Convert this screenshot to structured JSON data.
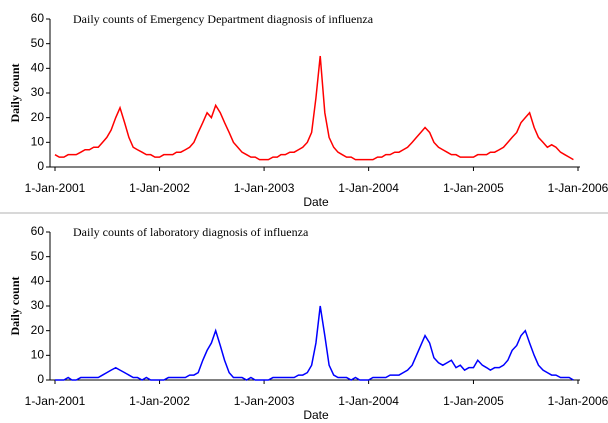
{
  "chart_data": [
    {
      "type": "line",
      "title": "Daily counts of Emergency Department diagnosis of influenza",
      "title_color": "#ff0000",
      "x_label": "Date",
      "y_label": "Daily count",
      "x": [
        "2001-01-01",
        "2001-01-16",
        "2001-02-01",
        "2001-02-16",
        "2001-03-01",
        "2001-03-16",
        "2001-04-01",
        "2001-04-16",
        "2001-05-01",
        "2001-05-16",
        "2001-06-01",
        "2001-06-16",
        "2001-07-01",
        "2001-07-16",
        "2001-08-01",
        "2001-08-16",
        "2001-09-01",
        "2001-09-16",
        "2001-10-01",
        "2001-10-16",
        "2001-11-01",
        "2001-11-16",
        "2001-12-01",
        "2001-12-16",
        "2002-01-01",
        "2002-01-16",
        "2002-02-01",
        "2002-02-16",
        "2002-03-01",
        "2002-03-16",
        "2002-04-01",
        "2002-04-16",
        "2002-05-01",
        "2002-05-16",
        "2002-06-01",
        "2002-06-16",
        "2002-07-01",
        "2002-07-16",
        "2002-08-01",
        "2002-08-16",
        "2002-09-01",
        "2002-09-16",
        "2002-10-01",
        "2002-10-16",
        "2002-11-01",
        "2002-11-16",
        "2002-12-01",
        "2002-12-16",
        "2003-01-01",
        "2003-01-16",
        "2003-02-01",
        "2003-02-16",
        "2003-03-01",
        "2003-03-16",
        "2003-04-01",
        "2003-04-16",
        "2003-05-01",
        "2003-05-16",
        "2003-06-01",
        "2003-06-16",
        "2003-07-01",
        "2003-07-16",
        "2003-08-01",
        "2003-08-16",
        "2003-09-01",
        "2003-09-16",
        "2003-10-01",
        "2003-10-16",
        "2003-11-01",
        "2003-11-16",
        "2003-12-01",
        "2003-12-16",
        "2004-01-01",
        "2004-01-16",
        "2004-02-01",
        "2004-02-16",
        "2004-03-01",
        "2004-03-16",
        "2004-04-01",
        "2004-04-16",
        "2004-05-01",
        "2004-05-16",
        "2004-06-01",
        "2004-06-16",
        "2004-07-01",
        "2004-07-16",
        "2004-08-01",
        "2004-08-16",
        "2004-09-01",
        "2004-09-16",
        "2004-10-01",
        "2004-10-16",
        "2004-11-01",
        "2004-11-16",
        "2004-12-01",
        "2004-12-16",
        "2005-01-01",
        "2005-01-16",
        "2005-02-01",
        "2005-02-16",
        "2005-03-01",
        "2005-03-16",
        "2005-04-01",
        "2005-04-16",
        "2005-05-01",
        "2005-05-16",
        "2005-06-01",
        "2005-06-16",
        "2005-07-01",
        "2005-07-16",
        "2005-08-01",
        "2005-08-16",
        "2005-09-01",
        "2005-09-16",
        "2005-10-01",
        "2005-10-16",
        "2005-11-01",
        "2005-11-16",
        "2005-12-01",
        "2005-12-16"
      ],
      "series": [
        {
          "name": "Emergency Department",
          "color": "#ff0000",
          "values": [
            5,
            4,
            4,
            5,
            5,
            5,
            6,
            7,
            7,
            8,
            8,
            10,
            12,
            15,
            20,
            24,
            18,
            12,
            8,
            7,
            6,
            5,
            5,
            4,
            4,
            5,
            5,
            5,
            6,
            6,
            7,
            8,
            10,
            14,
            18,
            22,
            20,
            25,
            22,
            18,
            14,
            10,
            8,
            6,
            5,
            4,
            4,
            3,
            3,
            3,
            4,
            4,
            5,
            5,
            6,
            6,
            7,
            8,
            10,
            14,
            28,
            45,
            22,
            12,
            8,
            6,
            5,
            4,
            4,
            3,
            3,
            3,
            3,
            3,
            4,
            4,
            5,
            5,
            6,
            6,
            7,
            8,
            10,
            12,
            14,
            16,
            14,
            10,
            8,
            7,
            6,
            5,
            5,
            4,
            4,
            4,
            4,
            5,
            5,
            5,
            6,
            6,
            7,
            8,
            10,
            12,
            14,
            18,
            20,
            22,
            16,
            12,
            10,
            8,
            9,
            8,
            6,
            5,
            4,
            3
          ]
        }
      ],
      "xlim": [
        "2001-01-01",
        "2006-01-01"
      ],
      "xticks": [
        {
          "value": "2001-01-01",
          "label": "1-Jan-2001"
        },
        {
          "value": "2002-01-01",
          "label": "1-Jan-2002"
        },
        {
          "value": "2003-01-01",
          "label": "1-Jan-2003"
        },
        {
          "value": "2004-01-01",
          "label": "1-Jan-2004"
        },
        {
          "value": "2005-01-01",
          "label": "1-Jan-2005"
        },
        {
          "value": "2006-01-01",
          "label": "1-Jan-2006"
        }
      ],
      "ylim": [
        0,
        60
      ],
      "yticks": [
        0,
        10,
        20,
        30,
        40,
        50,
        60
      ]
    },
    {
      "type": "line",
      "title": "Daily counts of laboratory diagnosis of influenza",
      "title_color": "#0000ff",
      "x_label": "Date",
      "y_label": "Daily count",
      "x": [
        "2001-01-01",
        "2001-01-16",
        "2001-02-01",
        "2001-02-16",
        "2001-03-01",
        "2001-03-16",
        "2001-04-01",
        "2001-04-16",
        "2001-05-01",
        "2001-05-16",
        "2001-06-01",
        "2001-06-16",
        "2001-07-01",
        "2001-07-16",
        "2001-08-01",
        "2001-08-16",
        "2001-09-01",
        "2001-09-16",
        "2001-10-01",
        "2001-10-16",
        "2001-11-01",
        "2001-11-16",
        "2001-12-01",
        "2001-12-16",
        "2002-01-01",
        "2002-01-16",
        "2002-02-01",
        "2002-02-16",
        "2002-03-01",
        "2002-03-16",
        "2002-04-01",
        "2002-04-16",
        "2002-05-01",
        "2002-05-16",
        "2002-06-01",
        "2002-06-16",
        "2002-07-01",
        "2002-07-16",
        "2002-08-01",
        "2002-08-16",
        "2002-09-01",
        "2002-09-16",
        "2002-10-01",
        "2002-10-16",
        "2002-11-01",
        "2002-11-16",
        "2002-12-01",
        "2002-12-16",
        "2003-01-01",
        "2003-01-16",
        "2003-02-01",
        "2003-02-16",
        "2003-03-01",
        "2003-03-16",
        "2003-04-01",
        "2003-04-16",
        "2003-05-01",
        "2003-05-16",
        "2003-06-01",
        "2003-06-16",
        "2003-07-01",
        "2003-07-16",
        "2003-08-01",
        "2003-08-16",
        "2003-09-01",
        "2003-09-16",
        "2003-10-01",
        "2003-10-16",
        "2003-11-01",
        "2003-11-16",
        "2003-12-01",
        "2003-12-16",
        "2004-01-01",
        "2004-01-16",
        "2004-02-01",
        "2004-02-16",
        "2004-03-01",
        "2004-03-16",
        "2004-04-01",
        "2004-04-16",
        "2004-05-01",
        "2004-05-16",
        "2004-06-01",
        "2004-06-16",
        "2004-07-01",
        "2004-07-16",
        "2004-08-01",
        "2004-08-16",
        "2004-09-01",
        "2004-09-16",
        "2004-10-01",
        "2004-10-16",
        "2004-11-01",
        "2004-11-16",
        "2004-12-01",
        "2004-12-16",
        "2005-01-01",
        "2005-01-16",
        "2005-02-01",
        "2005-02-16",
        "2005-03-01",
        "2005-03-16",
        "2005-04-01",
        "2005-04-16",
        "2005-05-01",
        "2005-05-16",
        "2005-06-01",
        "2005-06-16",
        "2005-07-01",
        "2005-07-16",
        "2005-08-01",
        "2005-08-16",
        "2005-09-01",
        "2005-09-16",
        "2005-10-01",
        "2005-10-16",
        "2005-11-01",
        "2005-11-16",
        "2005-12-01",
        "2005-12-16"
      ],
      "series": [
        {
          "name": "Laboratory",
          "color": "#0000ff",
          "values": [
            0,
            0,
            0,
            1,
            0,
            0,
            1,
            1,
            1,
            1,
            1,
            2,
            3,
            4,
            5,
            4,
            3,
            2,
            1,
            1,
            0,
            1,
            0,
            0,
            0,
            0,
            1,
            1,
            1,
            1,
            1,
            2,
            2,
            3,
            8,
            12,
            15,
            20,
            14,
            8,
            3,
            1,
            1,
            1,
            0,
            1,
            0,
            0,
            0,
            0,
            1,
            1,
            1,
            1,
            1,
            1,
            2,
            2,
            3,
            6,
            15,
            30,
            18,
            6,
            2,
            1,
            1,
            1,
            0,
            1,
            0,
            0,
            0,
            1,
            1,
            1,
            1,
            2,
            2,
            2,
            3,
            4,
            6,
            10,
            14,
            18,
            15,
            9,
            7,
            6,
            7,
            8,
            5,
            6,
            4,
            5,
            5,
            8,
            6,
            5,
            4,
            5,
            5,
            6,
            8,
            12,
            14,
            18,
            20,
            15,
            10,
            6,
            4,
            3,
            2,
            2,
            1,
            1,
            1,
            0
          ]
        }
      ],
      "xlim": [
        "2001-01-01",
        "2006-01-01"
      ],
      "xticks": [
        {
          "value": "2001-01-01",
          "label": "1-Jan-2001"
        },
        {
          "value": "2002-01-01",
          "label": "1-Jan-2002"
        },
        {
          "value": "2003-01-01",
          "label": "1-Jan-2003"
        },
        {
          "value": "2004-01-01",
          "label": "1-Jan-2004"
        },
        {
          "value": "2005-01-01",
          "label": "1-Jan-2005"
        },
        {
          "value": "2006-01-01",
          "label": "1-Jan-2006"
        }
      ],
      "ylim": [
        0,
        60
      ],
      "yticks": [
        0,
        10,
        20,
        30,
        40,
        50,
        60
      ]
    }
  ]
}
